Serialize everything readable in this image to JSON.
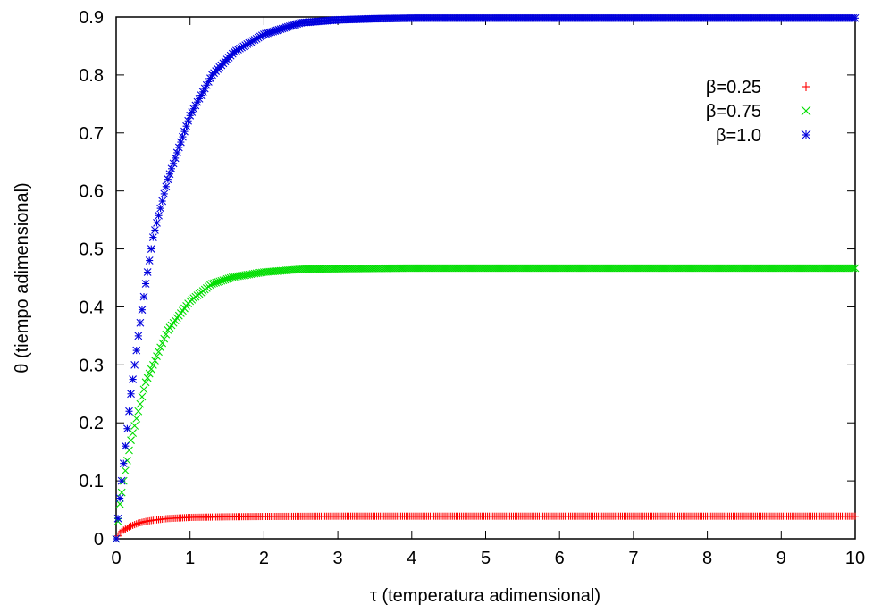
{
  "chart_data": {
    "type": "scatter",
    "title": "",
    "xlabel": "τ (temperatura adimensional)",
    "ylabel": "θ (tiempo adimensional)",
    "xlim": [
      0,
      10
    ],
    "ylim": [
      0,
      0.9
    ],
    "xticks": [
      0,
      1,
      2,
      3,
      4,
      5,
      6,
      7,
      8,
      9,
      10
    ],
    "yticks": [
      0,
      0.1,
      0.2,
      0.3,
      0.4,
      0.5,
      0.6,
      0.7,
      0.8,
      0.9
    ],
    "grid": false,
    "legend_position": "top-right",
    "series": [
      {
        "name": "β=0.25",
        "marker": "plus",
        "color": "#ff0000",
        "x": [
          0,
          0.05,
          0.1,
          0.2,
          0.3,
          0.4,
          0.5,
          0.7,
          1.0,
          1.5,
          2.0,
          3.0,
          4.0,
          5.0,
          6.0,
          7.0,
          8.0,
          9.0,
          10.0
        ],
        "y": [
          0,
          0.01,
          0.015,
          0.022,
          0.027,
          0.03,
          0.032,
          0.035,
          0.037,
          0.038,
          0.0385,
          0.039,
          0.039,
          0.039,
          0.039,
          0.039,
          0.039,
          0.039,
          0.039
        ]
      },
      {
        "name": "β=0.75",
        "marker": "cross",
        "color": "#00dd00",
        "x": [
          0,
          0.05,
          0.1,
          0.2,
          0.3,
          0.4,
          0.5,
          0.7,
          1.0,
          1.3,
          1.6,
          2.0,
          2.5,
          3.0,
          4.0,
          5.0,
          6.0,
          7.0,
          8.0,
          9.0,
          10.0
        ],
        "y": [
          0,
          0.06,
          0.1,
          0.17,
          0.22,
          0.27,
          0.3,
          0.36,
          0.41,
          0.44,
          0.452,
          0.46,
          0.465,
          0.466,
          0.467,
          0.467,
          0.467,
          0.467,
          0.467,
          0.467,
          0.467
        ]
      },
      {
        "name": "β=1.0",
        "marker": "star",
        "color": "#0000dd",
        "x": [
          0,
          0.05,
          0.1,
          0.2,
          0.3,
          0.4,
          0.5,
          0.7,
          1.0,
          1.3,
          1.6,
          2.0,
          2.5,
          3.0,
          3.5,
          4.0,
          5.0,
          6.0,
          7.0,
          8.0,
          9.0,
          10.0
        ],
        "y": [
          0,
          0.07,
          0.13,
          0.25,
          0.35,
          0.44,
          0.52,
          0.62,
          0.73,
          0.8,
          0.84,
          0.87,
          0.89,
          0.895,
          0.897,
          0.898,
          0.898,
          0.898,
          0.898,
          0.898,
          0.898,
          0.898
        ]
      }
    ]
  }
}
